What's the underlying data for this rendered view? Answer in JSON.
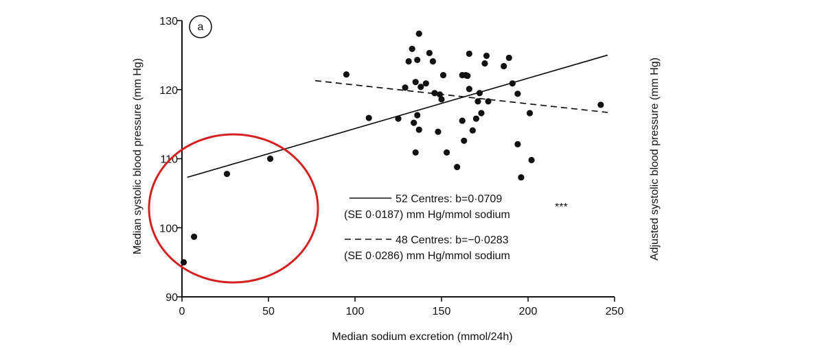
{
  "chart_data": {
    "type": "scatter",
    "panel_label": "a",
    "xlabel": "Median sodium excretion (mmol/24h)",
    "ylabel_left": "Median systolic blood pressure (mm Hg)",
    "ylabel_right": "Adjusted systolic blood pressure (mm Hg)",
    "xlim": [
      0,
      250
    ],
    "ylim": [
      90,
      130
    ],
    "x_ticks": [
      "0",
      "50",
      "100",
      "150",
      "200",
      "250"
    ],
    "y_ticks": [
      "90",
      "100",
      "110",
      "120",
      "130"
    ],
    "points": [
      {
        "x": 1,
        "y": 95
      },
      {
        "x": 7,
        "y": 98.7
      },
      {
        "x": 26,
        "y": 107.8
      },
      {
        "x": 51,
        "y": 110
      },
      {
        "x": 95,
        "y": 122.2
      },
      {
        "x": 108,
        "y": 115.9
      },
      {
        "x": 125,
        "y": 115.8
      },
      {
        "x": 129,
        "y": 120.3
      },
      {
        "x": 131,
        "y": 124.1
      },
      {
        "x": 133,
        "y": 125.9
      },
      {
        "x": 134,
        "y": 115.2
      },
      {
        "x": 135,
        "y": 121.1
      },
      {
        "x": 135,
        "y": 110.9
      },
      {
        "x": 136,
        "y": 124.3
      },
      {
        "x": 136,
        "y": 116.3
      },
      {
        "x": 137,
        "y": 128.1
      },
      {
        "x": 137,
        "y": 114.2
      },
      {
        "x": 138,
        "y": 120.4
      },
      {
        "x": 141,
        "y": 120.9
      },
      {
        "x": 143,
        "y": 125.3
      },
      {
        "x": 145,
        "y": 124.1
      },
      {
        "x": 146,
        "y": 119.5
      },
      {
        "x": 148,
        "y": 113.9
      },
      {
        "x": 149,
        "y": 119.3
      },
      {
        "x": 150,
        "y": 118.6
      },
      {
        "x": 151,
        "y": 122.1
      },
      {
        "x": 153,
        "y": 110.9
      },
      {
        "x": 159,
        "y": 108.8
      },
      {
        "x": 162,
        "y": 122.1
      },
      {
        "x": 162,
        "y": 115.5
      },
      {
        "x": 163,
        "y": 112.6
      },
      {
        "x": 164,
        "y": 122.1
      },
      {
        "x": 165,
        "y": 122
      },
      {
        "x": 166,
        "y": 125.2
      },
      {
        "x": 166,
        "y": 120.1
      },
      {
        "x": 168,
        "y": 114.1
      },
      {
        "x": 170,
        "y": 115.8
      },
      {
        "x": 171,
        "y": 118.3
      },
      {
        "x": 172,
        "y": 119.5
      },
      {
        "x": 173,
        "y": 116.6
      },
      {
        "x": 175,
        "y": 123.8
      },
      {
        "x": 176,
        "y": 124.9
      },
      {
        "x": 177,
        "y": 118.3
      },
      {
        "x": 186,
        "y": 123.4
      },
      {
        "x": 189,
        "y": 124.6
      },
      {
        "x": 191,
        "y": 120.9
      },
      {
        "x": 194,
        "y": 119.4
      },
      {
        "x": 194,
        "y": 112.1
      },
      {
        "x": 196,
        "y": 107.3
      },
      {
        "x": 201,
        "y": 116.6
      },
      {
        "x": 202,
        "y": 109.8
      },
      {
        "x": 242,
        "y": 117.8
      }
    ],
    "lines": [
      {
        "style": "solid",
        "x": [
          3,
          246
        ],
        "y": [
          107.3,
          125
        ]
      },
      {
        "style": "dashed",
        "x": [
          77,
          246
        ],
        "y": [
          121.3,
          116.7
        ]
      }
    ],
    "legend": [
      {
        "style": "solid",
        "line1": "52 Centres: b=0·0709",
        "line2": "(SE 0·0187) mm Hg/mmol sodium",
        "mark": "***"
      },
      {
        "style": "dashed",
        "line1": "48 Centres: b=−0·0283",
        "line2": "(SE 0·0286) mm Hg/mmol sodium"
      }
    ],
    "annotation": {
      "shape": "ellipse",
      "color": "#d42020"
    }
  }
}
